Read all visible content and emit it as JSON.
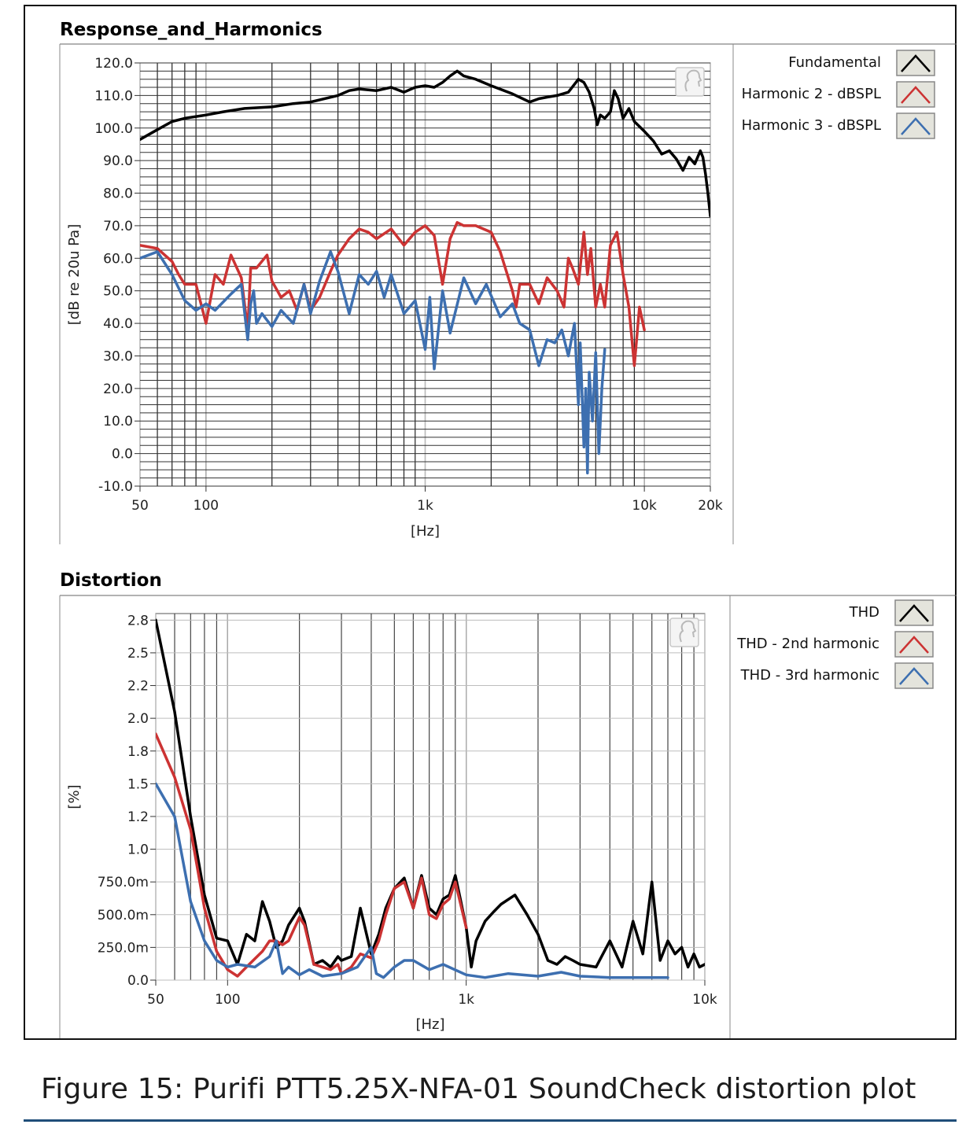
{
  "caption": "Figure 15: Purifi PTT5.25X-NFA-01 SoundCheck distortion plot",
  "chart_data": [
    {
      "type": "line",
      "title": "Response_and_Harmonics",
      "xlabel": "[Hz]",
      "ylabel": "[dB re 20u Pa]",
      "xscale": "log",
      "xlim": [
        50,
        20000
      ],
      "ylim": [
        -10,
        120
      ],
      "yticks": [
        "120.0",
        "110.0",
        "100.0",
        "90.0",
        "80.0",
        "70.0",
        "60.0",
        "50.0",
        "40.0",
        "30.0",
        "20.0",
        "10.0",
        "0.0",
        "-10.0"
      ],
      "ytick_values": [
        120,
        110,
        100,
        90,
        80,
        70,
        60,
        50,
        40,
        30,
        20,
        10,
        0,
        -10
      ],
      "xticks": [
        "50",
        "100",
        "1k",
        "10k",
        "20k"
      ],
      "xtick_values": [
        50,
        100,
        1000,
        10000,
        20000
      ],
      "legend_position": "right",
      "series": [
        {
          "name": "Fundamental",
          "color": "#000000",
          "x": [
            50,
            60,
            70,
            80,
            100,
            120,
            150,
            200,
            250,
            300,
            400,
            450,
            500,
            600,
            700,
            800,
            900,
            1000,
            1100,
            1200,
            1300,
            1400,
            1500,
            1700,
            2000,
            2500,
            3000,
            3300,
            3600,
            4000,
            4500,
            5000,
            5300,
            5600,
            5900,
            6100,
            6300,
            6600,
            7000,
            7300,
            7600,
            8000,
            8500,
            9000,
            10000,
            11000,
            12000,
            13000,
            14000,
            15000,
            16000,
            17000,
            18000,
            18500,
            19000,
            19500,
            20000
          ],
          "values": [
            96.5,
            99.5,
            102,
            103,
            104,
            105,
            106,
            106.5,
            107.5,
            108,
            110,
            111.5,
            112,
            111.5,
            112.5,
            111,
            112.5,
            113,
            112.5,
            114,
            116,
            117.5,
            116,
            115,
            113,
            110.5,
            108,
            109,
            109.5,
            110,
            111,
            115,
            114,
            111,
            106,
            101,
            104,
            103,
            105,
            111.5,
            109,
            103,
            106,
            102,
            99,
            96,
            92,
            93,
            90.5,
            87,
            91,
            89,
            93,
            91,
            86,
            80,
            73
          ]
        },
        {
          "name": "Harmonic 2 - dBSPL",
          "color": "#cc3333",
          "x": [
            50,
            60,
            70,
            75,
            80,
            90,
            100,
            110,
            120,
            130,
            145,
            155,
            160,
            170,
            190,
            200,
            220,
            240,
            260,
            280,
            300,
            330,
            370,
            400,
            450,
            500,
            550,
            600,
            700,
            800,
            900,
            1000,
            1100,
            1200,
            1300,
            1400,
            1500,
            1700,
            2000,
            2200,
            2500,
            2600,
            2700,
            3000,
            3300,
            3600,
            4000,
            4300,
            4500,
            4700,
            5000,
            5300,
            5500,
            5700,
            6000,
            6300,
            6600,
            7000,
            7500,
            8000,
            8500,
            9000,
            9500,
            10000
          ],
          "values": [
            64,
            63,
            59,
            55,
            52,
            52,
            40,
            55,
            52,
            61,
            54,
            38,
            57,
            57,
            61,
            53,
            48,
            50,
            44,
            52,
            44,
            48,
            56,
            61,
            66,
            69,
            68,
            66,
            69,
            64,
            68,
            70,
            67,
            52,
            66,
            71,
            70,
            70,
            68,
            62,
            50,
            45,
            52,
            52,
            46,
            54,
            50,
            45,
            60,
            57,
            52,
            68,
            55,
            63,
            45,
            52,
            45,
            64,
            68,
            55,
            45,
            27,
            45,
            38
          ]
        },
        {
          "name": "Harmonic 3 - dBSPL",
          "color": "#3d6fb0",
          "x": [
            50,
            60,
            70,
            80,
            90,
            100,
            110,
            130,
            145,
            155,
            160,
            165,
            170,
            180,
            200,
            220,
            250,
            280,
            300,
            330,
            370,
            400,
            450,
            500,
            550,
            600,
            650,
            700,
            800,
            900,
            1000,
            1050,
            1100,
            1200,
            1300,
            1500,
            1700,
            1900,
            2200,
            2500,
            2700,
            3000,
            3300,
            3600,
            3900,
            4200,
            4500,
            4800,
            5000,
            5100,
            5300,
            5400,
            5500,
            5600,
            5800,
            6000,
            6200,
            6400,
            6600
          ],
          "values": [
            60,
            62,
            55,
            47,
            44,
            46,
            44,
            49,
            52,
            35,
            46,
            50,
            40,
            43,
            39,
            44,
            40,
            52,
            43,
            53,
            62,
            56,
            43,
            55,
            52,
            56,
            48,
            55,
            43,
            47,
            32,
            48,
            26,
            50,
            37,
            54,
            46,
            52,
            42,
            46,
            40,
            38,
            27,
            35,
            34,
            38,
            30,
            40,
            15,
            34,
            2,
            20,
            -6,
            25,
            10,
            31,
            0,
            20,
            32
          ]
        }
      ]
    },
    {
      "type": "line",
      "title": "Distortion",
      "xlabel": "[Hz]",
      "ylabel": "[%]",
      "xscale": "log",
      "xlim": [
        50,
        10000
      ],
      "ylim": [
        0,
        2.8
      ],
      "yticks": [
        "2.8",
        "2.5",
        "2.2",
        "2.0",
        "1.8",
        "1.5",
        "1.2",
        "1.0",
        "750.0m",
        "500.0m",
        "250.0m",
        "0.0"
      ],
      "ytick_values": [
        2.75,
        2.5,
        2.25,
        2.0,
        1.75,
        1.5,
        1.25,
        1.0,
        0.75,
        0.5,
        0.25,
        0.0
      ],
      "xticks": [
        "50",
        "100",
        "1k",
        "10k"
      ],
      "xtick_values": [
        50,
        100,
        1000,
        10000
      ],
      "legend_position": "right",
      "series": [
        {
          "name": "THD",
          "color": "#000000",
          "x": [
            50,
            60,
            70,
            80,
            90,
            100,
            110,
            120,
            130,
            140,
            150,
            160,
            170,
            180,
            200,
            210,
            230,
            250,
            270,
            290,
            300,
            330,
            360,
            400,
            430,
            460,
            500,
            550,
            600,
            650,
            700,
            750,
            800,
            850,
            900,
            950,
            1000,
            1050,
            1100,
            1200,
            1300,
            1400,
            1600,
            1800,
            2000,
            2200,
            2400,
            2600,
            2800,
            3000,
            3500,
            4000,
            4500,
            5000,
            5500,
            6000,
            6500,
            7000,
            7500,
            8000,
            8500,
            9000,
            9500,
            10000
          ],
          "values": [
            2.75,
            2.05,
            1.25,
            0.65,
            0.32,
            0.3,
            0.12,
            0.35,
            0.3,
            0.6,
            0.45,
            0.25,
            0.3,
            0.42,
            0.55,
            0.45,
            0.12,
            0.15,
            0.1,
            0.18,
            0.15,
            0.18,
            0.55,
            0.2,
            0.35,
            0.55,
            0.7,
            0.78,
            0.55,
            0.8,
            0.55,
            0.5,
            0.62,
            0.65,
            0.8,
            0.6,
            0.4,
            0.1,
            0.3,
            0.45,
            0.52,
            0.58,
            0.65,
            0.5,
            0.35,
            0.15,
            0.12,
            0.18,
            0.15,
            0.12,
            0.1,
            0.3,
            0.1,
            0.45,
            0.2,
            0.75,
            0.15,
            0.3,
            0.2,
            0.25,
            0.1,
            0.2,
            0.1,
            0.12
          ]
        },
        {
          "name": "THD - 2nd harmonic",
          "color": "#cc3333",
          "x": [
            50,
            60,
            70,
            80,
            90,
            100,
            110,
            120,
            140,
            150,
            160,
            170,
            180,
            200,
            210,
            230,
            250,
            270,
            290,
            300,
            330,
            360,
            400,
            430,
            460,
            500,
            550,
            600,
            650,
            700,
            750,
            800,
            850,
            900,
            1000
          ],
          "values": [
            1.88,
            1.55,
            1.15,
            0.55,
            0.22,
            0.08,
            0.03,
            0.1,
            0.22,
            0.3,
            0.3,
            0.27,
            0.3,
            0.48,
            0.42,
            0.12,
            0.1,
            0.08,
            0.12,
            0.05,
            0.1,
            0.2,
            0.17,
            0.3,
            0.5,
            0.7,
            0.75,
            0.55,
            0.78,
            0.5,
            0.47,
            0.58,
            0.62,
            0.75,
            0.4
          ]
        },
        {
          "name": "THD - 3rd harmonic",
          "color": "#3d6fb0",
          "x": [
            50,
            60,
            70,
            80,
            90,
            100,
            110,
            130,
            150,
            160,
            170,
            180,
            200,
            220,
            250,
            300,
            350,
            400,
            420,
            450,
            500,
            550,
            600,
            700,
            800,
            1000,
            1200,
            1500,
            2000,
            2500,
            3000,
            4000,
            5000,
            6000,
            7000
          ],
          "values": [
            1.5,
            1.25,
            0.6,
            0.3,
            0.15,
            0.1,
            0.12,
            0.1,
            0.18,
            0.3,
            0.05,
            0.1,
            0.04,
            0.08,
            0.03,
            0.05,
            0.1,
            0.25,
            0.05,
            0.02,
            0.1,
            0.15,
            0.15,
            0.08,
            0.12,
            0.04,
            0.02,
            0.05,
            0.03,
            0.06,
            0.03,
            0.02,
            0.02,
            0.02,
            0.02
          ]
        }
      ]
    }
  ]
}
